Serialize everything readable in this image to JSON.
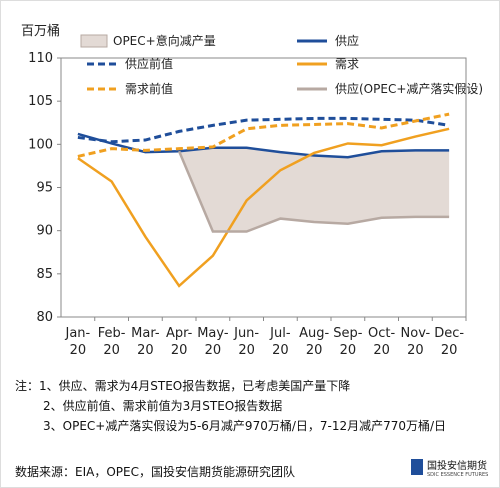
{
  "chart_data": {
    "type": "line",
    "y_label": "百万桶",
    "categories": [
      "Jan-20",
      "Feb-20",
      "Mar-20",
      "Apr-20",
      "May-20",
      "Jun-20",
      "Jul-20",
      "Aug-20",
      "Sep-20",
      "Oct-20",
      "Nov-20",
      "Dec-20"
    ],
    "ylim": [
      80,
      110
    ],
    "yticks": [
      80,
      85,
      90,
      95,
      100,
      105,
      110
    ],
    "area": {
      "name": "OPEC+意向减产量",
      "color": "#e3dad5",
      "edge": "#b7a9a2"
    },
    "series": [
      {
        "name": "供应",
        "color": "#1f4e9a",
        "dash": false,
        "values": [
          101.2,
          100.1,
          99.1,
          99.2,
          99.6,
          99.6,
          99.1,
          98.7,
          98.5,
          99.2,
          99.3,
          99.3
        ]
      },
      {
        "name": "供应前值",
        "color": "#1f4e9a",
        "dash": true,
        "values": [
          100.8,
          100.3,
          100.5,
          101.5,
          102.2,
          102.8,
          102.9,
          103.0,
          103.0,
          102.9,
          102.8,
          102.2
        ]
      },
      {
        "name": "需求",
        "color": "#f0a020",
        "dash": false,
        "values": [
          98.4,
          95.7,
          89.3,
          83.6,
          87.1,
          93.5,
          97.0,
          99.0,
          100.1,
          99.9,
          100.9,
          101.8
        ]
      },
      {
        "name": "需求前值",
        "color": "#f0a020",
        "dash": true,
        "values": [
          98.6,
          99.5,
          99.3,
          99.5,
          99.7,
          101.8,
          102.2,
          102.3,
          102.4,
          101.9,
          102.7,
          103.5
        ]
      },
      {
        "name": "供应(OPEC+减产落实假设)",
        "color": "#b7a9a2",
        "dash": false,
        "values": [
          null,
          null,
          null,
          99.2,
          89.9,
          89.9,
          91.4,
          91.0,
          90.8,
          91.5,
          91.6,
          91.6
        ]
      }
    ]
  },
  "notes": [
    "注：1、供应、需求为4月STEO报告数据，已考虑美国产量下降",
    "2、供应前值、需求前值为3月STEO报告数据",
    "3、OPEC+减产落实假设为5-6月减产970万桶/日，7-12月减产770万桶/日"
  ],
  "source": "数据来源：EIA，OPEC，国投安信期货能源研究团队",
  "logo": {
    "name": "国投安信期货",
    "sub": "SDIC ESSENCE FUTURES"
  }
}
